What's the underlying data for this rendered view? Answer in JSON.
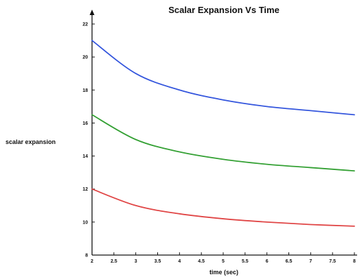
{
  "chart_data": {
    "type": "line",
    "title": "Scalar Expansion Vs Time",
    "xlabel": "time (sec)",
    "ylabel": "scalar expansion",
    "xlim": [
      2,
      8
    ],
    "ylim": [
      8,
      22
    ],
    "xticks": [
      2,
      2.5,
      3,
      3.5,
      4,
      4.5,
      5,
      5.5,
      6,
      6.5,
      7,
      7.5,
      8
    ],
    "xtick_labels": [
      "2",
      "2.5",
      "3",
      "3.5",
      "4",
      "4.5",
      "5",
      "5.5",
      "6",
      "6.5",
      "7",
      "7.5",
      "8"
    ],
    "yticks": [
      8,
      10,
      12,
      14,
      16,
      18,
      20,
      22
    ],
    "ytick_labels": [
      "8",
      "10",
      "12",
      "14",
      "16",
      "18",
      "20",
      "22"
    ],
    "grid": false,
    "x": [
      2,
      3,
      4,
      5,
      6,
      7,
      8
    ],
    "series": [
      {
        "color": "#3355dd",
        "values": [
          21.0,
          19.0,
          18.0,
          17.4,
          17.0,
          16.75,
          16.5
        ]
      },
      {
        "color": "#33a033",
        "values": [
          16.5,
          15.0,
          14.25,
          13.8,
          13.5,
          13.3,
          13.1
        ]
      },
      {
        "color": "#e04545",
        "values": [
          12.0,
          11.0,
          10.5,
          10.2,
          10.0,
          9.85,
          9.75
        ]
      }
    ]
  }
}
